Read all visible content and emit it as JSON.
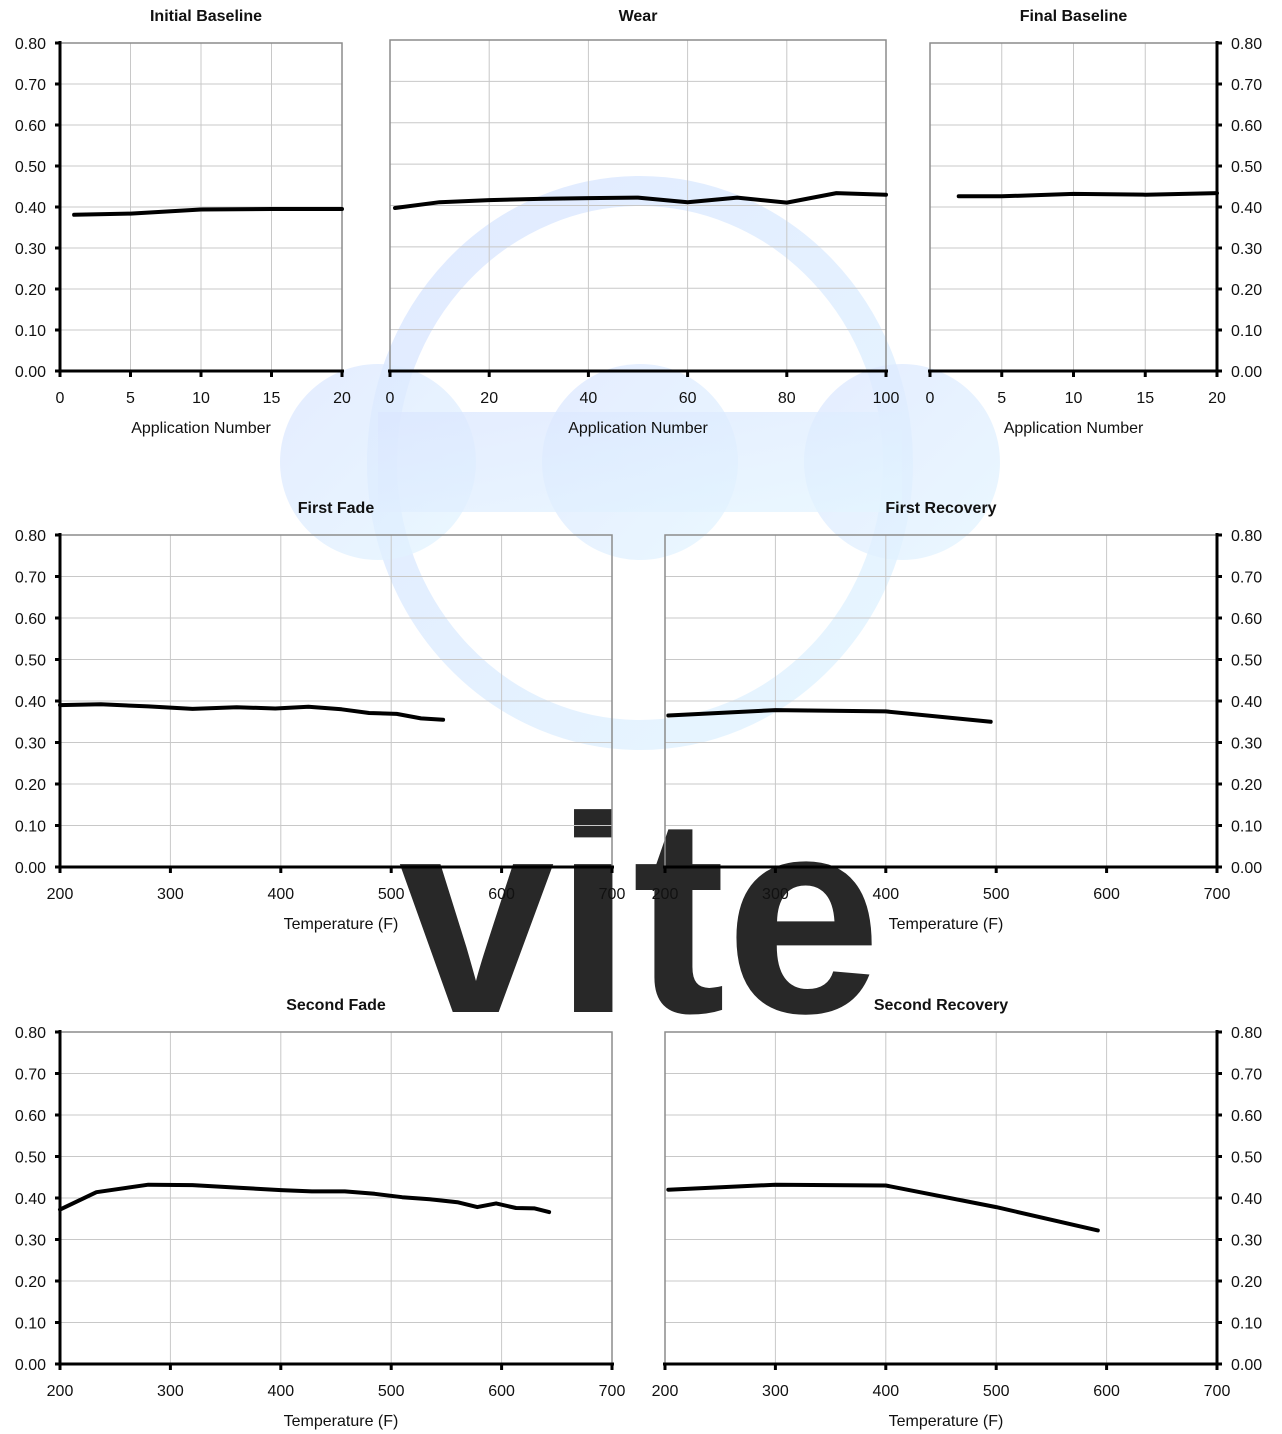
{
  "watermark": {
    "text": "vite",
    "colors": [
      "#d6e4ff",
      "#e6f4ff"
    ]
  },
  "colors": {
    "line": "#000000",
    "grid": "#c8c8c8",
    "frame": "#8c8c8c",
    "axis": "#000000"
  },
  "chart_data": [
    {
      "id": "initial-baseline",
      "type": "line",
      "title": "Initial Baseline",
      "xlabel": "Application Number",
      "ylabel": "",
      "xlim": [
        0,
        20
      ],
      "ylim": [
        0,
        0.8
      ],
      "xticks": [
        "0",
        "5",
        "10",
        "15",
        "20"
      ],
      "yticks": [
        "0.00",
        "0.10",
        "0.20",
        "0.30",
        "0.40",
        "0.50",
        "0.60",
        "0.70",
        "0.80"
      ],
      "yaxis_side": "left",
      "grid": true,
      "series": [
        {
          "x": [
            1,
            5,
            10,
            15,
            20
          ],
          "y": [
            0.381,
            0.384,
            0.394,
            0.395,
            0.395
          ]
        }
      ]
    },
    {
      "id": "wear",
      "type": "line",
      "title": "Wear",
      "xlabel": "Application Number",
      "ylabel": "",
      "xlim": [
        0,
        100
      ],
      "ylim": [
        0,
        0.8
      ],
      "xticks": [
        "0",
        "20",
        "40",
        "60",
        "80",
        "100"
      ],
      "yticks": [],
      "yaxis_side": "none",
      "grid": true,
      "series": [
        {
          "x": [
            1,
            10,
            20,
            30,
            40,
            50,
            60,
            70,
            80,
            90,
            100
          ],
          "y": [
            0.394,
            0.408,
            0.413,
            0.416,
            0.418,
            0.419,
            0.408,
            0.419,
            0.407,
            0.43,
            0.426
          ]
        }
      ]
    },
    {
      "id": "final-baseline",
      "type": "line",
      "title": "Final Baseline",
      "xlabel": "Application Number",
      "ylabel": "",
      "xlim": [
        0,
        20
      ],
      "ylim": [
        0,
        0.8
      ],
      "xticks": [
        "0",
        "5",
        "10",
        "15",
        "20"
      ],
      "yticks": [
        "0.00",
        "0.10",
        "0.20",
        "0.30",
        "0.40",
        "0.50",
        "0.60",
        "0.70",
        "0.80"
      ],
      "yaxis_side": "right",
      "grid": true,
      "series": [
        {
          "x": [
            2,
            5,
            10,
            15,
            20
          ],
          "y": [
            0.426,
            0.426,
            0.432,
            0.43,
            0.434
          ]
        }
      ]
    },
    {
      "id": "first-fade",
      "type": "line",
      "title": "First Fade",
      "xlabel": "Temperature (F)",
      "ylabel": "",
      "xlim": [
        200,
        700
      ],
      "ylim": [
        0,
        0.8
      ],
      "xticks": [
        "200",
        "300",
        "400",
        "500",
        "600",
        "700"
      ],
      "yticks": [
        "0.00",
        "0.10",
        "0.20",
        "0.30",
        "0.40",
        "0.50",
        "0.60",
        "0.70",
        "0.80"
      ],
      "yaxis_side": "left",
      "grid": true,
      "series": [
        {
          "x": [
            200,
            237,
            280,
            320,
            360,
            395,
            425,
            455,
            480,
            505,
            527,
            547
          ],
          "y": [
            0.39,
            0.392,
            0.387,
            0.381,
            0.385,
            0.382,
            0.386,
            0.38,
            0.371,
            0.369,
            0.358,
            0.355
          ]
        }
      ]
    },
    {
      "id": "first-recovery",
      "type": "line",
      "title": "First Recovery",
      "xlabel": "Temperature (F)",
      "ylabel": "",
      "xlim": [
        200,
        700
      ],
      "ylim": [
        0,
        0.8
      ],
      "xticks": [
        "200",
        "300",
        "400",
        "500",
        "600",
        "700"
      ],
      "yticks": [
        "0.00",
        "0.10",
        "0.20",
        "0.30",
        "0.40",
        "0.50",
        "0.60",
        "0.70",
        "0.80"
      ],
      "yaxis_side": "right",
      "grid": true,
      "series": [
        {
          "x": [
            203,
            300,
            400,
            495
          ],
          "y": [
            0.365,
            0.378,
            0.375,
            0.35
          ]
        }
      ]
    },
    {
      "id": "second-fade",
      "type": "line",
      "title": "Second Fade",
      "xlabel": "Temperature (F)",
      "ylabel": "",
      "xlim": [
        200,
        700
      ],
      "ylim": [
        0,
        0.8
      ],
      "xticks": [
        "200",
        "300",
        "400",
        "500",
        "600",
        "700"
      ],
      "yticks": [
        "0.00",
        "0.10",
        "0.20",
        "0.30",
        "0.40",
        "0.50",
        "0.60",
        "0.70",
        "0.80"
      ],
      "yaxis_side": "left",
      "grid": true,
      "series": [
        {
          "x": [
            200,
            233,
            280,
            320,
            360,
            400,
            428,
            458,
            485,
            510,
            535,
            560,
            578,
            595,
            613,
            630,
            643
          ],
          "y": [
            0.372,
            0.414,
            0.432,
            0.431,
            0.425,
            0.419,
            0.416,
            0.416,
            0.41,
            0.402,
            0.397,
            0.39,
            0.378,
            0.387,
            0.376,
            0.375,
            0.366
          ]
        }
      ]
    },
    {
      "id": "second-recovery",
      "type": "line",
      "title": "Second Recovery",
      "xlabel": "Temperature (F)",
      "ylabel": "",
      "xlim": [
        200,
        700
      ],
      "ylim": [
        0,
        0.8
      ],
      "xticks": [
        "200",
        "300",
        "400",
        "500",
        "600",
        "700"
      ],
      "yticks": [
        "0.00",
        "0.10",
        "0.20",
        "0.30",
        "0.40",
        "0.50",
        "0.60",
        "0.70",
        "0.80"
      ],
      "yaxis_side": "right",
      "grid": true,
      "series": [
        {
          "x": [
            203,
            300,
            400,
            500,
            592
          ],
          "y": [
            0.42,
            0.432,
            0.43,
            0.378,
            0.322
          ]
        }
      ]
    }
  ]
}
